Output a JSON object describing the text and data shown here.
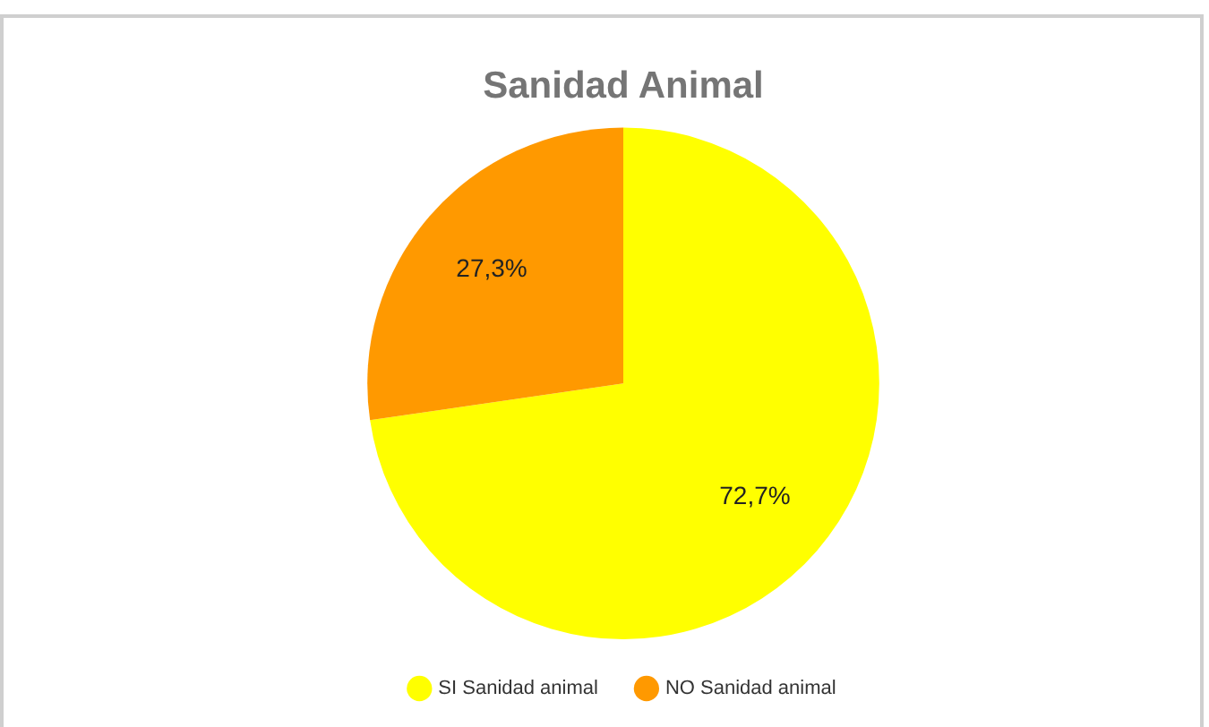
{
  "chart_data": {
    "type": "pie",
    "title": "Sanidad Animal",
    "categories": [
      "SI Sanidad animal",
      "NO Sanidad animal"
    ],
    "values": [
      72.7,
      27.3
    ],
    "colors": [
      "#ffff00",
      "#ff9900"
    ],
    "value_labels": [
      "72,7%",
      "27,3%"
    ],
    "legend": "bottom"
  }
}
